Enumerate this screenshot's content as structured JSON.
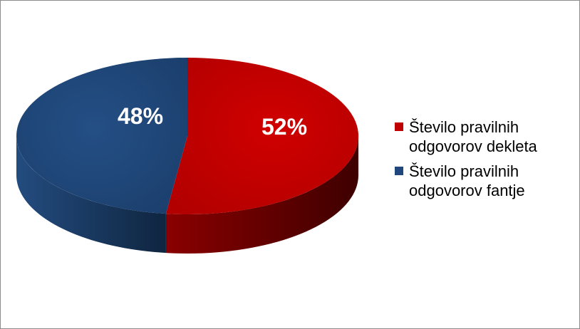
{
  "chart_data": {
    "type": "pie",
    "title": "",
    "style": "3d",
    "labels_shown_as": "percent",
    "slices": [
      {
        "label": "Število pravilnih odgovorov dekleta",
        "value": 52,
        "display": "52%",
        "color": "#c00000"
      },
      {
        "label": "Število pravilnih odgovorov fantje",
        "value": 48,
        "display": "48%",
        "color": "#1f477d"
      }
    ],
    "legend": {
      "position": "right",
      "items": [
        {
          "line1": "Število pravilnih",
          "line2": "odgovorov dekleta",
          "color": "#c00000"
        },
        {
          "line1": "Število pravilnih",
          "line2": "odgovorov fantje",
          "color": "#1f477d"
        }
      ]
    }
  }
}
